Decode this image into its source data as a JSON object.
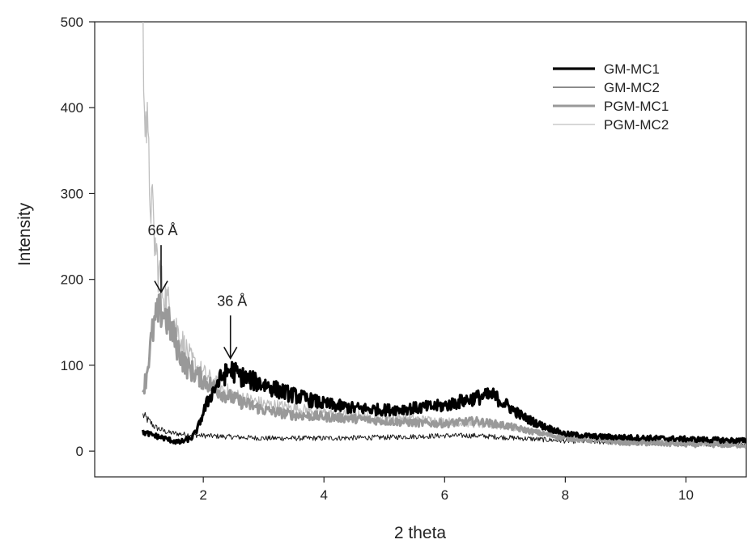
{
  "chart_data": {
    "type": "line",
    "title": "",
    "xlabel": "2 theta",
    "ylabel": "Intensity",
    "xlim": [
      0.2,
      11
    ],
    "ylim": [
      -30,
      500
    ],
    "xticks": [
      2,
      4,
      6,
      8,
      10
    ],
    "yticks": [
      0,
      100,
      200,
      300,
      400,
      500
    ],
    "xtick_labels": [
      "2",
      "4",
      "6",
      "8",
      "10"
    ],
    "ytick_labels": [
      "0",
      "100",
      "200",
      "300",
      "400",
      "500"
    ],
    "grid": false,
    "legend_position": "top-right",
    "series": [
      {
        "name": "GM-MC1",
        "color": "#000000",
        "line_width": 3.2,
        "points": [
          [
            1.0,
            22
          ],
          [
            1.2,
            18
          ],
          [
            1.4,
            14
          ],
          [
            1.6,
            10
          ],
          [
            1.8,
            15
          ],
          [
            1.9,
            25
          ],
          [
            2.0,
            45
          ],
          [
            2.1,
            62
          ],
          [
            2.2,
            75
          ],
          [
            2.3,
            85
          ],
          [
            2.45,
            95
          ],
          [
            2.6,
            88
          ],
          [
            2.8,
            82
          ],
          [
            3.0,
            78
          ],
          [
            3.2,
            72
          ],
          [
            3.5,
            65
          ],
          [
            4.0,
            55
          ],
          [
            4.5,
            50
          ],
          [
            5.0,
            48
          ],
          [
            5.5,
            50
          ],
          [
            6.0,
            53
          ],
          [
            6.5,
            62
          ],
          [
            6.8,
            65
          ],
          [
            7.0,
            55
          ],
          [
            7.3,
            40
          ],
          [
            7.6,
            30
          ],
          [
            8.0,
            20
          ],
          [
            8.5,
            17
          ],
          [
            9.0,
            16
          ],
          [
            9.5,
            15
          ],
          [
            10.0,
            14
          ],
          [
            10.5,
            13
          ],
          [
            11.0,
            12
          ]
        ]
      },
      {
        "name": "GM-MC2",
        "color": "#1a1a1a",
        "line_width": 1.0,
        "points": [
          [
            1.0,
            42
          ],
          [
            1.1,
            35
          ],
          [
            1.2,
            28
          ],
          [
            1.4,
            22
          ],
          [
            1.6,
            20
          ],
          [
            2.0,
            18
          ],
          [
            3.0,
            15
          ],
          [
            4.0,
            15
          ],
          [
            5.0,
            16
          ],
          [
            6.0,
            18
          ],
          [
            6.5,
            18
          ],
          [
            7.0,
            16
          ],
          [
            8.0,
            12
          ],
          [
            9.0,
            10
          ],
          [
            10.0,
            9
          ],
          [
            11.0,
            8
          ]
        ]
      },
      {
        "name": "PGM-MC1",
        "color": "#999999",
        "line_width": 3.0,
        "points": [
          [
            1.0,
            70
          ],
          [
            1.05,
            85
          ],
          [
            1.1,
            110
          ],
          [
            1.15,
            135
          ],
          [
            1.2,
            150
          ],
          [
            1.25,
            160
          ],
          [
            1.3,
            163
          ],
          [
            1.35,
            160
          ],
          [
            1.45,
            145
          ],
          [
            1.55,
            125
          ],
          [
            1.7,
            100
          ],
          [
            1.9,
            88
          ],
          [
            2.1,
            78
          ],
          [
            2.3,
            68
          ],
          [
            2.6,
            58
          ],
          [
            3.0,
            48
          ],
          [
            3.5,
            42
          ],
          [
            4.0,
            40
          ],
          [
            4.5,
            38
          ],
          [
            5.0,
            35
          ],
          [
            5.5,
            33
          ],
          [
            6.0,
            32
          ],
          [
            6.5,
            35
          ],
          [
            7.0,
            30
          ],
          [
            7.5,
            22
          ],
          [
            8.0,
            15
          ],
          [
            9.0,
            10
          ],
          [
            10.0,
            8
          ],
          [
            11.0,
            7
          ]
        ]
      },
      {
        "name": "PGM-MC2",
        "color": "#bfbfbf",
        "line_width": 1.3,
        "points": [
          [
            1.0,
            475
          ],
          [
            1.03,
            430
          ],
          [
            1.06,
            380
          ],
          [
            1.1,
            320
          ],
          [
            1.15,
            280
          ],
          [
            1.2,
            240
          ],
          [
            1.25,
            215
          ],
          [
            1.3,
            195
          ],
          [
            1.35,
            185
          ],
          [
            1.4,
            175
          ],
          [
            1.5,
            155
          ],
          [
            1.6,
            135
          ],
          [
            1.7,
            120
          ],
          [
            1.8,
            105
          ],
          [
            2.0,
            90
          ],
          [
            2.2,
            78
          ],
          [
            2.5,
            65
          ],
          [
            3.0,
            55
          ],
          [
            3.5,
            50
          ],
          [
            4.0,
            45
          ],
          [
            5.0,
            40
          ],
          [
            6.0,
            35
          ],
          [
            7.0,
            28
          ],
          [
            8.0,
            18
          ],
          [
            9.0,
            12
          ],
          [
            10.0,
            9
          ],
          [
            11.0,
            8
          ]
        ]
      }
    ],
    "annotations": [
      {
        "text": "66 Å",
        "x": 1.3,
        "y_tip": 185,
        "y_tail": 240
      },
      {
        "text": "36 Å",
        "x": 2.45,
        "y_tip": 108,
        "y_tail": 158
      }
    ]
  }
}
